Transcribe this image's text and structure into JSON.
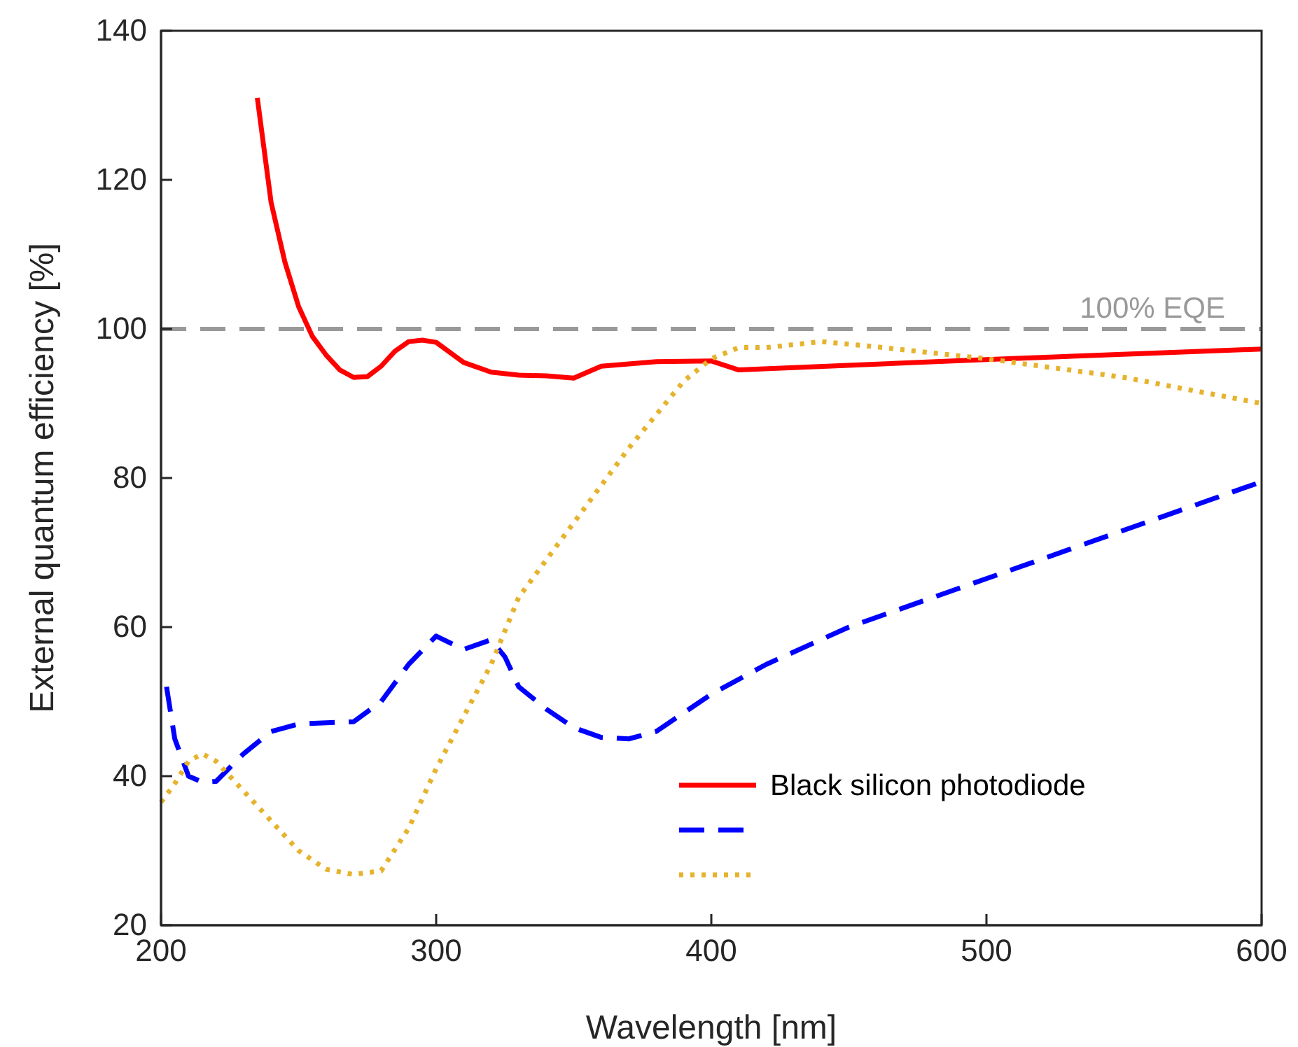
{
  "chart_data": {
    "type": "line",
    "xlabel": "Wavelength [nm]",
    "ylabel": "External quantum efficiency [%]",
    "xlim": [
      200,
      600
    ],
    "xticks": [
      200,
      300,
      400,
      500,
      600
    ],
    "ylim": [
      20,
      140
    ],
    "yticks": [
      20,
      40,
      60,
      80,
      100,
      120,
      140
    ],
    "grid": false,
    "legend": "bottom right",
    "ref_lines": [
      {
        "axis": "y",
        "value": 100,
        "label": "100% EQE",
        "color": "#999999",
        "line_style": "dashed"
      }
    ],
    "series": [
      {
        "name": "Black silicon photodiode",
        "color": "#ff0000",
        "line_style": "solid",
        "x": [
          235,
          240,
          245,
          250,
          255,
          260,
          265,
          270,
          275,
          280,
          285,
          290,
          295,
          300,
          310,
          320,
          330,
          340,
          350,
          360,
          380,
          400,
          410,
          500,
          600
        ],
        "values": [
          131,
          117,
          109,
          103,
          99,
          96.5,
          94.5,
          93.5,
          93.6,
          95,
          97,
          98.3,
          98.5,
          98.2,
          95.5,
          94.2,
          93.8,
          93.7,
          93.4,
          95,
          95.6,
          95.7,
          94.5,
          95.9,
          97.3
        ]
      },
      {
        "color": "#0000ff",
        "line_style": "dashed",
        "x": [
          202,
          205,
          210,
          215,
          220,
          230,
          240,
          250,
          270,
          280,
          290,
          300,
          310,
          320,
          325,
          330,
          340,
          350,
          360,
          370,
          380,
          400,
          420,
          450,
          500,
          550,
          600
        ],
        "values": [
          52,
          45,
          40,
          39.2,
          39.3,
          43,
          46,
          47,
          47.3,
          50,
          55,
          58.8,
          57,
          58.3,
          56,
          52,
          49,
          46.5,
          45.2,
          45,
          46,
          51,
          55,
          60,
          66.5,
          73,
          79.5
        ]
      },
      {
        "color": "#e6b32e",
        "line_style": "dotted",
        "x": [
          200,
          205,
          210,
          215,
          220,
          230,
          240,
          250,
          260,
          270,
          280,
          290,
          300,
          310,
          320,
          330,
          340,
          350,
          360,
          370,
          380,
          390,
          400,
          410,
          420,
          440,
          460,
          480,
          500,
          550,
          600
        ],
        "values": [
          36.5,
          39,
          42,
          43,
          42,
          38,
          34,
          30,
          27.5,
          26.8,
          27.3,
          33,
          41,
          48,
          55,
          64,
          69,
          74,
          79,
          84,
          88.5,
          93,
          96,
          97.5,
          97.5,
          98.3,
          97.6,
          96.8,
          96,
          93.5,
          90
        ]
      }
    ]
  }
}
